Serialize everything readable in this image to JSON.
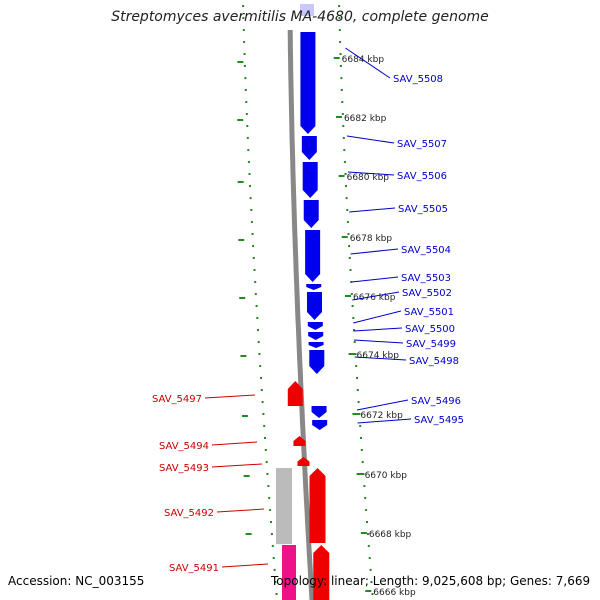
{
  "title": "Streptomyces avermitilis MA-4680, complete genome",
  "footer": {
    "accession": "Accession: NC_003155",
    "summary": "Topology: linear; Length: 9,025,608 bp; Genes: 7,669"
  },
  "kbp_labels": [
    "6684 kbp",
    "6682 kbp",
    "6680 kbp",
    "6678 kbp",
    "6676 kbp",
    "6674 kbp",
    "6672 kbp",
    "6670 kbp",
    "6668 kbp",
    "6666 kbp"
  ],
  "forward_genes": [
    "SAV_5508",
    "SAV_5507",
    "SAV_5506",
    "SAV_5505",
    "SAV_5504",
    "SAV_5503",
    "SAV_5502",
    "SAV_5501",
    "SAV_5500",
    "SAV_5499",
    "SAV_5498",
    "SAV_5496",
    "SAV_5495"
  ],
  "reverse_genes": [
    "SAV_5497",
    "SAV_5494",
    "SAV_5493",
    "SAV_5492",
    "SAV_5491"
  ],
  "colors": {
    "forward": "#0000ee",
    "reverse": "#ee0000",
    "forward_label": "#0000cc",
    "reverse_label": "#cc0000",
    "backbone": "#888888",
    "ticks": "#228b22",
    "pseudo": "#bbbbbb",
    "rna": "#ee1188"
  }
}
